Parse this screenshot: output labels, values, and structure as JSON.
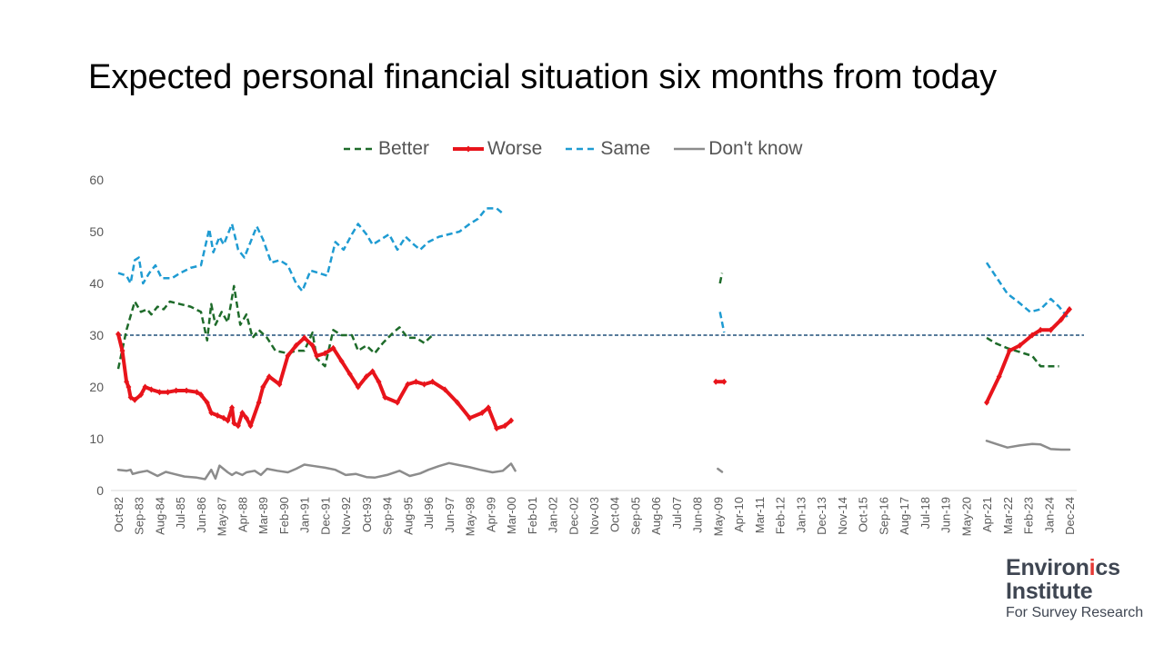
{
  "chart_data": {
    "type": "line",
    "title": "Expected personal financial situation six months from today",
    "xlabel": "",
    "ylabel": "",
    "ylim": [
      0,
      60
    ],
    "yticks": [
      0,
      10,
      20,
      30,
      40,
      50,
      60
    ],
    "reference_line": 30,
    "legend_position": "top",
    "grid": false,
    "x_tick_labels": [
      "Oct-82",
      "Sep-83",
      "Aug-84",
      "Jul-85",
      "Jun-86",
      "May-87",
      "Apr-88",
      "Mar-89",
      "Feb-90",
      "Jan-91",
      "Dec-91",
      "Nov-92",
      "Oct-93",
      "Sep-94",
      "Aug-95",
      "Jul-96",
      "Jun-97",
      "May-98",
      "Apr-99",
      "Mar-00",
      "Feb-01",
      "Jan-02",
      "Dec-02",
      "Nov-03",
      "Oct-04",
      "Sep-05",
      "Aug-06",
      "Jul-07",
      "Jun-08",
      "May-09",
      "Apr-10",
      "Mar-11",
      "Feb-12",
      "Jan-13",
      "Dec-13",
      "Nov-14",
      "Oct-15",
      "Sep-16",
      "Aug-17",
      "Jul-18",
      "Jun-19",
      "May-20",
      "Apr-21",
      "Mar-22",
      "Feb-23",
      "Jan-24",
      "Dec-24"
    ],
    "series": [
      {
        "name": "Better",
        "color": "#1e6b2a",
        "style": "dashed",
        "segments": [
          [
            [
              0,
              23.5
            ],
            [
              0.4,
              31
            ],
            [
              0.8,
              36.5
            ],
            [
              1.1,
              34.5
            ],
            [
              1.4,
              35
            ],
            [
              1.6,
              34
            ],
            [
              1.9,
              35.5
            ],
            [
              2.2,
              35
            ],
            [
              2.5,
              36.5
            ],
            [
              3,
              36
            ],
            [
              3.5,
              35.5
            ],
            [
              4,
              34.5
            ],
            [
              4.3,
              29
            ],
            [
              4.5,
              36
            ],
            [
              4.7,
              32
            ],
            [
              5,
              34.5
            ],
            [
              5.3,
              32.5
            ],
            [
              5.6,
              39.5
            ],
            [
              5.9,
              32
            ],
            [
              6.2,
              34
            ],
            [
              6.5,
              29.5
            ],
            [
              6.8,
              31
            ],
            [
              7.2,
              29.5
            ],
            [
              7.6,
              27
            ],
            [
              8.2,
              26.5
            ],
            [
              8.6,
              27
            ],
            [
              9,
              27
            ],
            [
              9.4,
              30.5
            ],
            [
              9.6,
              25.5
            ],
            [
              10,
              24
            ],
            [
              10.4,
              31
            ],
            [
              10.8,
              30
            ],
            [
              11.3,
              30
            ],
            [
              11.6,
              27
            ],
            [
              12,
              28
            ],
            [
              12.4,
              26.5
            ],
            [
              12.8,
              28.5
            ],
            [
              13.3,
              30.5
            ],
            [
              13.6,
              31.5
            ],
            [
              14,
              29.5
            ],
            [
              14.4,
              29.5
            ],
            [
              14.8,
              28.5
            ],
            [
              15.2,
              30
            ]
          ],
          [
            [
              29.1,
              40
            ],
            [
              29.2,
              42
            ]
          ],
          [
            [
              42.0,
              29.5
            ],
            [
              42.4,
              28.5
            ],
            [
              43.0,
              27.5
            ],
            [
              43.8,
              26.5
            ],
            [
              44.2,
              26
            ],
            [
              44.6,
              24
            ],
            [
              45.5,
              24
            ]
          ]
        ]
      },
      {
        "name": "Worse",
        "color": "#e8141b",
        "style": "solid-marker",
        "segments": [
          [
            [
              0,
              30.2
            ],
            [
              0.2,
              27
            ],
            [
              0.4,
              21
            ],
            [
              0.5,
              20
            ],
            [
              0.6,
              18
            ],
            [
              0.8,
              17.5
            ],
            [
              1.1,
              18.5
            ],
            [
              1.3,
              20
            ],
            [
              1.6,
              19.5
            ],
            [
              2,
              19
            ],
            [
              2.4,
              19
            ],
            [
              2.8,
              19.3
            ],
            [
              3.3,
              19.3
            ],
            [
              3.8,
              19
            ],
            [
              4,
              18.5
            ],
            [
              4.3,
              17
            ],
            [
              4.5,
              15
            ],
            [
              4.8,
              14.5
            ],
            [
              5.1,
              14
            ],
            [
              5.3,
              13.5
            ],
            [
              5.5,
              16
            ],
            [
              5.6,
              13
            ],
            [
              5.8,
              12.5
            ],
            [
              6,
              15
            ],
            [
              6.2,
              14
            ],
            [
              6.4,
              12.5
            ],
            [
              6.8,
              17
            ],
            [
              7,
              20
            ],
            [
              7.3,
              22
            ],
            [
              7.8,
              20.5
            ],
            [
              8.2,
              26
            ],
            [
              8.6,
              28
            ],
            [
              9,
              29.5
            ],
            [
              9.4,
              28
            ],
            [
              9.6,
              26
            ],
            [
              10,
              26.5
            ],
            [
              10.4,
              27.5
            ],
            [
              10.8,
              25
            ],
            [
              11.2,
              22.5
            ],
            [
              11.6,
              20
            ],
            [
              12,
              22
            ],
            [
              12.3,
              23
            ],
            [
              12.6,
              21
            ],
            [
              12.9,
              18
            ],
            [
              13.5,
              17
            ],
            [
              14,
              20.5
            ],
            [
              14.4,
              21
            ],
            [
              14.8,
              20.5
            ],
            [
              15.2,
              21
            ],
            [
              15.8,
              19.5
            ],
            [
              16.4,
              17
            ],
            [
              17,
              14
            ],
            [
              17.6,
              15
            ],
            [
              17.9,
              16
            ],
            [
              18.3,
              12
            ],
            [
              18.7,
              12.5
            ],
            [
              19,
              13.5
            ]
          ],
          [
            [
              28.9,
              21
            ],
            [
              29.3,
              21
            ]
          ],
          [
            [
              42.0,
              17
            ],
            [
              42.6,
              22
            ],
            [
              43.1,
              27
            ],
            [
              43.6,
              28
            ],
            [
              44.2,
              30
            ],
            [
              44.6,
              31
            ],
            [
              45.1,
              31
            ],
            [
              45.6,
              33
            ],
            [
              46.0,
              35
            ]
          ]
        ]
      },
      {
        "name": "Same",
        "color": "#1e9bd2",
        "style": "dashed",
        "segments": [
          [
            [
              0,
              42
            ],
            [
              0.4,
              41.5
            ],
            [
              0.6,
              40
            ],
            [
              0.8,
              44.5
            ],
            [
              1.0,
              45
            ],
            [
              1.2,
              40
            ],
            [
              1.5,
              42
            ],
            [
              1.8,
              43.5
            ],
            [
              2.1,
              41
            ],
            [
              2.6,
              41
            ],
            [
              3,
              42
            ],
            [
              3.5,
              43
            ],
            [
              4,
              43.5
            ],
            [
              4.4,
              50.5
            ],
            [
              4.6,
              46
            ],
            [
              4.9,
              49
            ],
            [
              5.1,
              47.5
            ],
            [
              5.5,
              51.5
            ],
            [
              5.8,
              46.5
            ],
            [
              6.1,
              45
            ],
            [
              6.5,
              49
            ],
            [
              6.7,
              51
            ],
            [
              7,
              48.5
            ],
            [
              7.4,
              44
            ],
            [
              7.8,
              44.5
            ],
            [
              8.2,
              43.5
            ],
            [
              8.6,
              40
            ],
            [
              8.9,
              38.5
            ],
            [
              9.3,
              42.5
            ],
            [
              9.7,
              42
            ],
            [
              10.1,
              41.5
            ],
            [
              10.5,
              48
            ],
            [
              10.9,
              46.5
            ],
            [
              11.3,
              49.5
            ],
            [
              11.6,
              51.5
            ],
            [
              12,
              49.5
            ],
            [
              12.3,
              47.5
            ],
            [
              12.7,
              48.5
            ],
            [
              13.1,
              49.5
            ],
            [
              13.5,
              46.5
            ],
            [
              13.9,
              49
            ],
            [
              14.3,
              47.5
            ],
            [
              14.6,
              46.5
            ],
            [
              15,
              48
            ],
            [
              15.5,
              49
            ],
            [
              16,
              49.5
            ],
            [
              16.5,
              50
            ],
            [
              17,
              51.5
            ],
            [
              17.4,
              52.5
            ],
            [
              17.8,
              54.5
            ],
            [
              18.3,
              54.5
            ],
            [
              18.6,
              53.5
            ]
          ],
          [
            [
              29.1,
              34.5
            ],
            [
              29.3,
              30.5
            ]
          ],
          [
            [
              42.0,
              44
            ],
            [
              42.5,
              41
            ],
            [
              43.0,
              38
            ],
            [
              43.5,
              36.5
            ],
            [
              44.1,
              34.5
            ],
            [
              44.6,
              35
            ],
            [
              45.1,
              37
            ],
            [
              45.5,
              35.5
            ],
            [
              46.0,
              33
            ]
          ]
        ]
      },
      {
        "name": "Don't know",
        "color": "#8c8c8c",
        "style": "solid",
        "segments": [
          [
            [
              0,
              4
            ],
            [
              0.4,
              3.8
            ],
            [
              0.6,
              4
            ],
            [
              0.7,
              3.2
            ],
            [
              1,
              3.5
            ],
            [
              1.4,
              3.8
            ],
            [
              1.9,
              2.8
            ],
            [
              2.3,
              3.6
            ],
            [
              2.7,
              3.2
            ],
            [
              3.2,
              2.7
            ],
            [
              3.8,
              2.5
            ],
            [
              4.2,
              2.2
            ],
            [
              4.5,
              4
            ],
            [
              4.7,
              2.3
            ],
            [
              4.9,
              4.8
            ],
            [
              5.3,
              3.5
            ],
            [
              5.5,
              3
            ],
            [
              5.7,
              3.5
            ],
            [
              6,
              3
            ],
            [
              6.2,
              3.5
            ],
            [
              6.6,
              3.8
            ],
            [
              6.9,
              3
            ],
            [
              7.2,
              4.2
            ],
            [
              7.7,
              3.8
            ],
            [
              8.2,
              3.5
            ],
            [
              8.6,
              4.2
            ],
            [
              9,
              5
            ],
            [
              9.5,
              4.7
            ],
            [
              10,
              4.4
            ],
            [
              10.5,
              4
            ],
            [
              11,
              3
            ],
            [
              11.5,
              3.2
            ],
            [
              12,
              2.6
            ],
            [
              12.4,
              2.5
            ],
            [
              13,
              3
            ],
            [
              13.6,
              3.8
            ],
            [
              14.1,
              2.8
            ],
            [
              14.6,
              3.3
            ],
            [
              15,
              4
            ],
            [
              15.5,
              4.7
            ],
            [
              16,
              5.3
            ],
            [
              16.5,
              4.9
            ],
            [
              17,
              4.5
            ],
            [
              17.5,
              4
            ],
            [
              18.1,
              3.5
            ],
            [
              18.6,
              3.8
            ],
            [
              19,
              5.2
            ],
            [
              19.2,
              3.8
            ]
          ],
          [
            [
              29.0,
              4.2
            ],
            [
              29.2,
              3.6
            ]
          ],
          [
            [
              42.0,
              9.6
            ],
            [
              42.6,
              8.8
            ],
            [
              43.0,
              8.3
            ],
            [
              43.6,
              8.7
            ],
            [
              44.2,
              9
            ],
            [
              44.6,
              8.9
            ],
            [
              45.1,
              8
            ],
            [
              45.6,
              7.9
            ],
            [
              46.0,
              7.9
            ]
          ]
        ]
      }
    ]
  },
  "logo": {
    "line1_start": "Environ",
    "line1_accent": "i",
    "line1_end": "cs",
    "line2": "Institute",
    "line3": "For Survey Research"
  }
}
